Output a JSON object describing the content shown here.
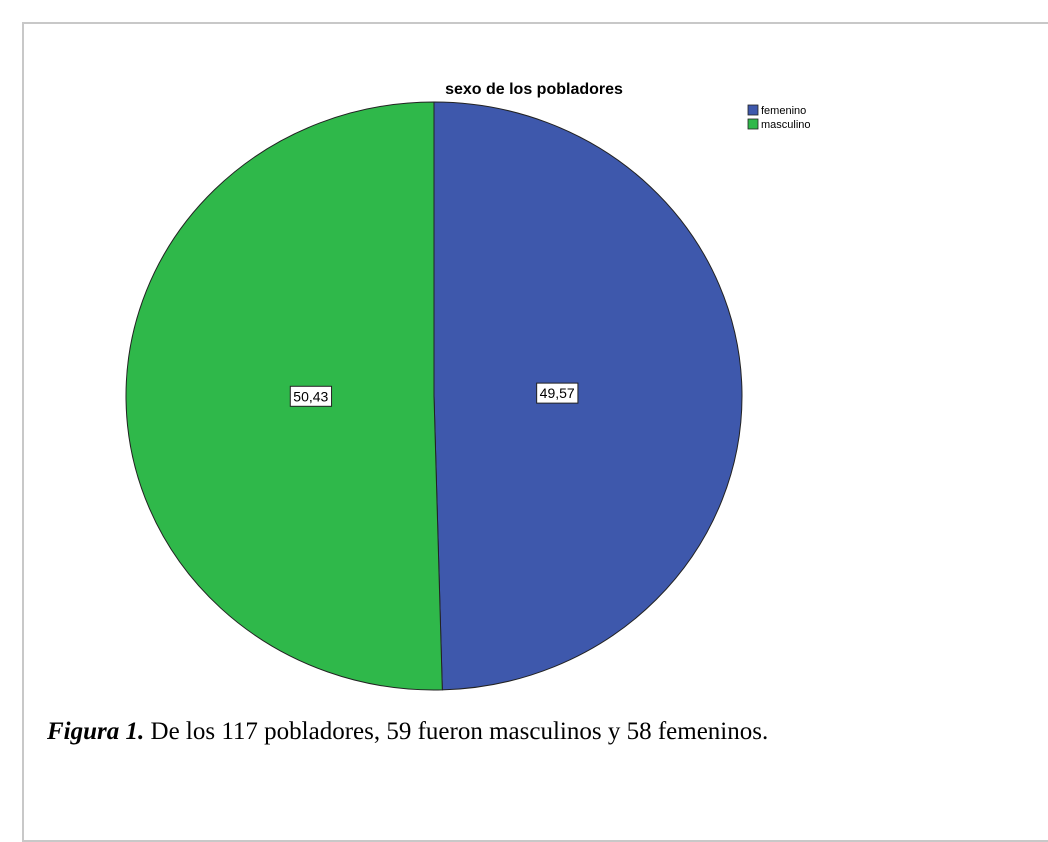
{
  "chart_data": {
    "type": "pie",
    "title": "sexo de los pobladores",
    "categories": [
      "femenino",
      "masculino"
    ],
    "values": [
      49.57,
      50.43
    ],
    "value_labels": [
      "49,57",
      "50,43"
    ],
    "colors": [
      "#3e58ac",
      "#2fb84a"
    ],
    "legend": "top-right"
  },
  "caption": {
    "label": "Figura 1.",
    "text": "De los 117 pobladores, 59 fueron masculinos y 58 femeninos."
  }
}
